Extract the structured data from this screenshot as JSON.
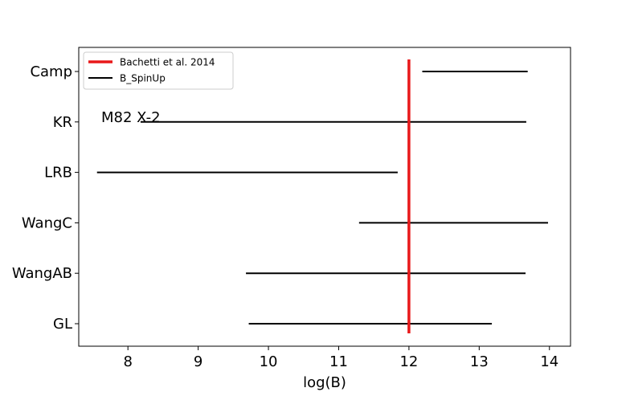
{
  "chart_data": {
    "type": "range",
    "title": "",
    "xlabel": "log(B)",
    "ylabel": "",
    "xlim": [
      7.3,
      14.3
    ],
    "x_ticks": [
      8,
      9,
      10,
      11,
      12,
      13,
      14
    ],
    "categories": [
      "GL",
      "WangAB",
      "WangC",
      "LRB",
      "KR",
      "Camp"
    ],
    "series": [
      {
        "name": "B_SpinUp",
        "color": "#000000",
        "ranges": [
          {
            "category": "GL",
            "low": 9.72,
            "high": 13.18
          },
          {
            "category": "WangAB",
            "low": 9.68,
            "high": 13.66
          },
          {
            "category": "WangC",
            "low": 11.29,
            "high": 13.98
          },
          {
            "category": "LRB",
            "low": 7.56,
            "high": 11.84
          },
          {
            "category": "KR",
            "low": 8.18,
            "high": 13.67
          },
          {
            "category": "Camp",
            "low": 12.19,
            "high": 13.69
          }
        ]
      }
    ],
    "reference_lines": [
      {
        "name": "Bachetti et al. 2014",
        "x": 12.0,
        "color": "#e8191a"
      }
    ],
    "legend_position": "upper-left",
    "legend": [
      {
        "label": "Bachetti et al. 2014",
        "color": "#e8191a",
        "style": "thick"
      },
      {
        "label": "B_SpinUp",
        "color": "#000000",
        "style": "thin"
      }
    ],
    "annotation": "M82 X-2",
    "grid": false
  }
}
